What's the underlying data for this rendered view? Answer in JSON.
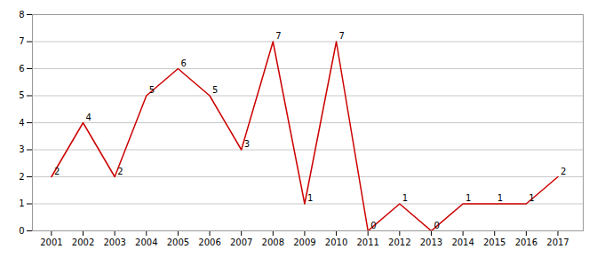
{
  "chart_data": {
    "type": "line",
    "x": [
      2001,
      2002,
      2003,
      2004,
      2005,
      2006,
      2007,
      2008,
      2009,
      2010,
      2011,
      2012,
      2013,
      2014,
      2015,
      2016,
      2017
    ],
    "values": [
      2,
      4,
      2,
      5,
      6,
      5,
      3,
      7,
      1,
      7,
      0,
      1,
      0,
      1,
      1,
      1,
      2
    ],
    "color": "#cc0000",
    "xlim": [
      2000.4,
      2017.8
    ],
    "xticks": [
      2001,
      2002,
      2003,
      2004,
      2005,
      2006,
      2007,
      2008,
      2009,
      2010,
      2011,
      2012,
      2013,
      2014,
      2015,
      2016,
      2017
    ],
    "ylim": [
      0,
      8
    ],
    "yticks": [
      0,
      1,
      2,
      3,
      4,
      5,
      6,
      7,
      8
    ],
    "grid": true,
    "data_labels": true
  }
}
